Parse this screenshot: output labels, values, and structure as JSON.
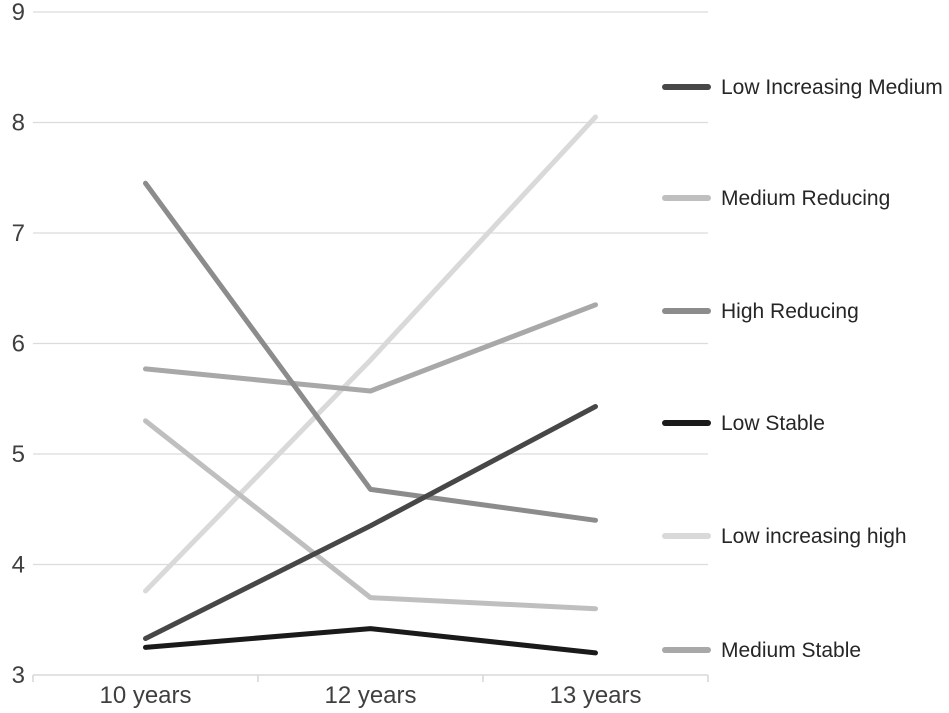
{
  "figure": {
    "type": "grouped-trajectory-line-chart",
    "background_color": "#ffffff"
  },
  "chart_data": {
    "type": "line",
    "categories": [
      "10 years",
      "12 years",
      "13 years"
    ],
    "series": [
      {
        "name": "Low Increasing Medium",
        "color": "#474747",
        "values": [
          3.33,
          4.35,
          5.43
        ]
      },
      {
        "name": "Medium Reducing",
        "color": "#bfbfbf",
        "values": [
          5.3,
          3.7,
          3.6
        ]
      },
      {
        "name": "High Reducing",
        "color": "#8c8c8c",
        "values": [
          7.45,
          4.68,
          4.4
        ]
      },
      {
        "name": "Low Stable",
        "color": "#1a1a1a",
        "values": [
          3.25,
          3.42,
          3.2
        ]
      },
      {
        "name": "Low increasing high",
        "color": "#d9d9d9",
        "values": [
          3.76,
          5.85,
          8.05
        ]
      },
      {
        "name": "Medium Stable",
        "color": "#a8a8a8",
        "values": [
          5.77,
          5.57,
          6.35
        ]
      }
    ],
    "yticks": [
      9,
      8,
      7,
      6,
      5,
      4,
      3
    ],
    "ylim": [
      3,
      9
    ],
    "title": "",
    "xlabel": "",
    "ylabel": "",
    "grid": "horizontal",
    "grid_color": "#dcdcdc",
    "axis_line_color": "#d9d9d9",
    "axis_text_color": "#3f3f3f",
    "legend_position": "right",
    "draw_order": [
      4,
      1,
      5,
      2,
      0,
      3
    ]
  }
}
